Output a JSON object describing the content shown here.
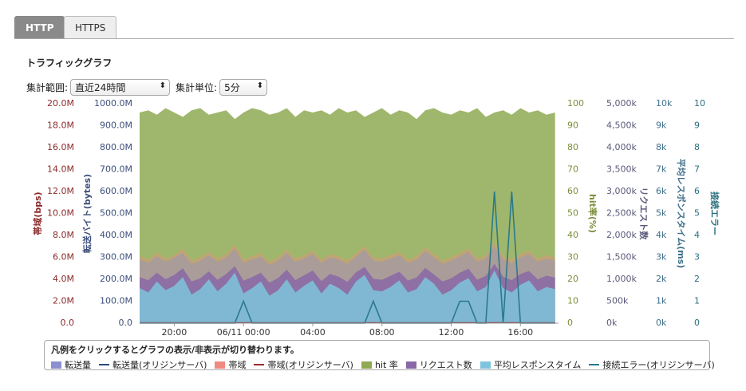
{
  "tabs": [
    "HTTP",
    "HTTPS"
  ],
  "section_title": "トラフィックグラフ",
  "controls": [
    {
      "label": "集計範囲:",
      "value": "直近24時間"
    },
    {
      "label": "集計単位:",
      "value": "5分"
    }
  ],
  "chart_data": {
    "type": "multi-axis-area",
    "legend_hint": "凡例をクリックするとグラフの表示/非表示が切り替わります。",
    "x": [
      0,
      0.5,
      1,
      1.5,
      2,
      2.5,
      3,
      3.5,
      4,
      4.5,
      5,
      5.5,
      6,
      6.5,
      7,
      7.5,
      8,
      8.5,
      9,
      9.5,
      10,
      10.5,
      11,
      11.5,
      12,
      12.5,
      13,
      13.5,
      14,
      14.5,
      15,
      15.5,
      16,
      16.5,
      17,
      17.5,
      18,
      18.5,
      19,
      19.5,
      20,
      20.5,
      21,
      21.5,
      22,
      22.5,
      23,
      23.5,
      24
    ],
    "xlim": [
      0,
      24.2
    ],
    "xticks": [
      {
        "value": 2,
        "label": "20:00"
      },
      {
        "value": 6,
        "label": "06/11 00:00"
      },
      {
        "value": 10,
        "label": "04:00"
      },
      {
        "value": 14,
        "label": "08:00"
      },
      {
        "value": 18,
        "label": "12:00"
      },
      {
        "value": 22,
        "label": "16:00"
      }
    ],
    "axes": [
      {
        "label": "帯域(bps)",
        "color": "#8b2a2a",
        "lim": [
          0,
          20000000
        ],
        "ticks": [
          {
            "value": 0,
            "label": "0.0"
          },
          {
            "value": 2000000,
            "label": "2.0M"
          },
          {
            "value": 4000000,
            "label": "4.0M"
          },
          {
            "value": 6000000,
            "label": "6.0M"
          },
          {
            "value": 8000000,
            "label": "8.0M"
          },
          {
            "value": 10000000,
            "label": "10.0M"
          },
          {
            "value": 12000000,
            "label": "12.0M"
          },
          {
            "value": 14000000,
            "label": "14.0M"
          },
          {
            "value": 16000000,
            "label": "16.0M"
          },
          {
            "value": 18000000,
            "label": "18.0M"
          },
          {
            "value": 20000000,
            "label": "20.0M"
          }
        ]
      },
      {
        "label": "転送バイト(bytes)",
        "color": "#3d4f7a",
        "lim": [
          0,
          1000000000
        ],
        "ticks": [
          {
            "value": 0,
            "label": "0.0"
          },
          {
            "value": 100000000,
            "label": "100.0M"
          },
          {
            "value": 200000000,
            "label": "200.0M"
          },
          {
            "value": 300000000,
            "label": "300.0M"
          },
          {
            "value": 400000000,
            "label": "400.0M"
          },
          {
            "value": 500000000,
            "label": "500.0M"
          },
          {
            "value": 600000000,
            "label": "600.0M"
          },
          {
            "value": 700000000,
            "label": "700.0M"
          },
          {
            "value": 800000000,
            "label": "800.0M"
          },
          {
            "value": 900000000,
            "label": "900.0M"
          },
          {
            "value": 1000000000,
            "label": "1000.0M"
          }
        ]
      },
      {
        "label": "hit率(%)",
        "color": "#7a8f3a",
        "lim": [
          0,
          100
        ],
        "ticks": [
          0,
          10,
          20,
          30,
          40,
          50,
          60,
          70,
          80,
          90,
          100
        ]
      },
      {
        "label": "リクエスト数",
        "color": "#5a5a7a",
        "lim": [
          0,
          5000000
        ],
        "ticks": [
          {
            "value": 0,
            "label": "0k"
          },
          {
            "value": 500000,
            "label": "500k"
          },
          {
            "value": 1000000,
            "label": "1,000k"
          },
          {
            "value": 1500000,
            "label": "1,500k"
          },
          {
            "value": 2000000,
            "label": "2,000k"
          },
          {
            "value": 2500000,
            "label": "2,500k"
          },
          {
            "value": 3000000,
            "label": "3,000k"
          },
          {
            "value": 3500000,
            "label": "3,500k"
          },
          {
            "value": 4000000,
            "label": "4,000k"
          },
          {
            "value": 4500000,
            "label": "4,500k"
          },
          {
            "value": 5000000,
            "label": "5,000k"
          }
        ]
      },
      {
        "label": "平均レスポンスタイム(ms)",
        "color": "#3f6f8a",
        "lim": [
          0,
          10000
        ],
        "ticks": [
          {
            "value": 0,
            "label": "0k"
          },
          {
            "value": 1000,
            "label": "1k"
          },
          {
            "value": 2000,
            "label": "2k"
          },
          {
            "value": 3000,
            "label": "3k"
          },
          {
            "value": 4000,
            "label": "4k"
          },
          {
            "value": 5000,
            "label": "5k"
          },
          {
            "value": 6000,
            "label": "6k"
          },
          {
            "value": 7000,
            "label": "7k"
          },
          {
            "value": 8000,
            "label": "8k"
          },
          {
            "value": 9000,
            "label": "9k"
          },
          {
            "value": 10000,
            "label": "10k"
          }
        ]
      },
      {
        "label": "接続エラー",
        "color": "#2a6f80",
        "lim": [
          0,
          10
        ],
        "ticks": [
          0,
          1,
          2,
          3,
          4,
          5,
          6,
          7,
          8,
          9,
          10
        ]
      }
    ],
    "series": [
      {
        "name": "hit 率",
        "style": "area",
        "axis": 2,
        "color": "#8eaa52",
        "values": [
          96,
          97,
          95,
          98,
          96,
          94,
          97,
          98,
          95,
          96,
          97,
          93,
          96,
          98,
          97,
          95,
          96,
          98,
          94,
          97,
          96,
          97,
          95,
          98,
          96,
          97,
          94,
          96,
          98,
          95,
          97,
          96,
          93,
          97,
          98,
          96,
          95,
          97,
          96,
          98,
          94,
          96,
          97,
          95,
          98,
          96,
          97,
          95,
          96
        ]
      },
      {
        "name": "帯域",
        "style": "area",
        "axis": 0,
        "color": "#f08a80",
        "values": [
          6100000,
          5800000,
          6400000,
          5900000,
          6200000,
          6800000,
          5700000,
          6000000,
          6500000,
          5900000,
          6300000,
          7200000,
          5800000,
          6100000,
          6400000,
          5600000,
          6000000,
          6700000,
          5900000,
          6200000,
          6600000,
          5800000,
          6300000,
          6100000,
          5700000,
          6400000,
          7000000,
          6000000,
          5900000,
          6200000,
          6500000,
          5800000,
          6100000,
          6900000,
          6300000,
          5700000,
          6000000,
          6400000,
          6800000,
          5900000,
          6200000,
          7400000,
          6100000,
          5800000,
          6300000,
          6600000,
          5900000,
          6200000,
          6000000
        ]
      },
      {
        "name": "転送量",
        "style": "area",
        "axis": 1,
        "color": "#8c8fd0",
        "values": [
          290000000,
          275000000,
          305000000,
          280000000,
          300000000,
          320000000,
          270000000,
          285000000,
          310000000,
          280000000,
          300000000,
          340000000,
          275000000,
          290000000,
          305000000,
          265000000,
          285000000,
          320000000,
          280000000,
          295000000,
          315000000,
          275000000,
          300000000,
          290000000,
          270000000,
          305000000,
          335000000,
          285000000,
          280000000,
          295000000,
          310000000,
          275000000,
          290000000,
          330000000,
          300000000,
          270000000,
          285000000,
          305000000,
          325000000,
          280000000,
          295000000,
          350000000,
          290000000,
          275000000,
          300000000,
          315000000,
          280000000,
          295000000,
          285000000
        ]
      },
      {
        "name": "リクエスト数",
        "style": "area",
        "axis": 3,
        "color": "#8a68a6",
        "values": [
          1050000,
          980000,
          1150000,
          1000000,
          1100000,
          1250000,
          950000,
          1020000,
          1180000,
          990000,
          1120000,
          1300000,
          970000,
          1050000,
          1150000,
          920000,
          1030000,
          1220000,
          980000,
          1090000,
          1200000,
          960000,
          1120000,
          1060000,
          940000,
          1160000,
          1280000,
          1010000,
          990000,
          1080000,
          1170000,
          970000,
          1040000,
          1260000,
          1110000,
          950000,
          1020000,
          1150000,
          1240000,
          990000,
          1080000,
          1350000,
          1060000,
          980000,
          1120000,
          1190000,
          1000000,
          1080000,
          1040000
        ]
      },
      {
        "name": "平均レスポンスタイム",
        "style": "area",
        "axis": 4,
        "color": "#7ec4dc",
        "values": [
          1600,
          1400,
          1900,
          1500,
          1700,
          2100,
          1300,
          1550,
          2000,
          1450,
          1800,
          2300,
          1350,
          1600,
          1900,
          1250,
          1500,
          2000,
          1400,
          1700,
          1950,
          1350,
          1800,
          1600,
          1300,
          1900,
          2200,
          1500,
          1450,
          1650,
          1950,
          1400,
          1550,
          2100,
          1800,
          1300,
          1500,
          1850,
          2050,
          1450,
          1650,
          2400,
          1600,
          1400,
          1750,
          1950,
          1450,
          1650,
          1550
        ]
      },
      {
        "name": "転送量(オリジンサーバ)",
        "style": "line",
        "axis": 1,
        "color": "#2c4a7a",
        "values": [
          1000000,
          1000000,
          1000000,
          1000000,
          1000000,
          1000000,
          1000000,
          1000000,
          1000000,
          1000000,
          1000000,
          1000000,
          1000000,
          1000000,
          1000000,
          1000000,
          1000000,
          1000000,
          1000000,
          1000000,
          1000000,
          1000000,
          1000000,
          1000000,
          1000000,
          1000000,
          1000000,
          1000000,
          1000000,
          1000000,
          1000000,
          1000000,
          1000000,
          1000000,
          1000000,
          1000000,
          1000000,
          1000000,
          1000000,
          1000000,
          1000000,
          1000000,
          1000000,
          1000000,
          1000000,
          1000000,
          1000000,
          1000000,
          1000000
        ]
      },
      {
        "name": "帯域(オリジンサーバ)",
        "style": "line",
        "axis": 0,
        "color": "#9b2c2c",
        "values": [
          20000,
          20000,
          20000,
          20000,
          20000,
          20000,
          20000,
          20000,
          20000,
          20000,
          20000,
          20000,
          20000,
          20000,
          20000,
          20000,
          20000,
          20000,
          20000,
          20000,
          20000,
          20000,
          20000,
          20000,
          20000,
          20000,
          20000,
          20000,
          20000,
          20000,
          20000,
          20000,
          20000,
          20000,
          20000,
          20000,
          20000,
          20000,
          20000,
          20000,
          20000,
          20000,
          20000,
          20000,
          20000,
          20000,
          20000,
          20000,
          20000
        ]
      },
      {
        "name": "接続エラー(オリジンサーバ)",
        "style": "line",
        "axis": 5,
        "color": "#2a7a8a",
        "values": [
          0,
          0,
          0,
          0,
          0,
          0,
          0,
          0,
          0,
          0,
          0,
          0,
          1,
          0,
          0,
          0,
          0,
          0,
          0,
          0,
          0,
          0,
          0,
          0,
          0,
          0,
          0,
          1,
          0,
          0,
          0,
          0,
          0,
          0,
          0,
          0,
          0,
          1,
          1,
          0,
          0,
          6,
          0,
          6,
          0,
          0,
          0,
          0,
          0
        ]
      }
    ],
    "legend_order": [
      2,
      5,
      1,
      6,
      0,
      3,
      4,
      7
    ]
  }
}
